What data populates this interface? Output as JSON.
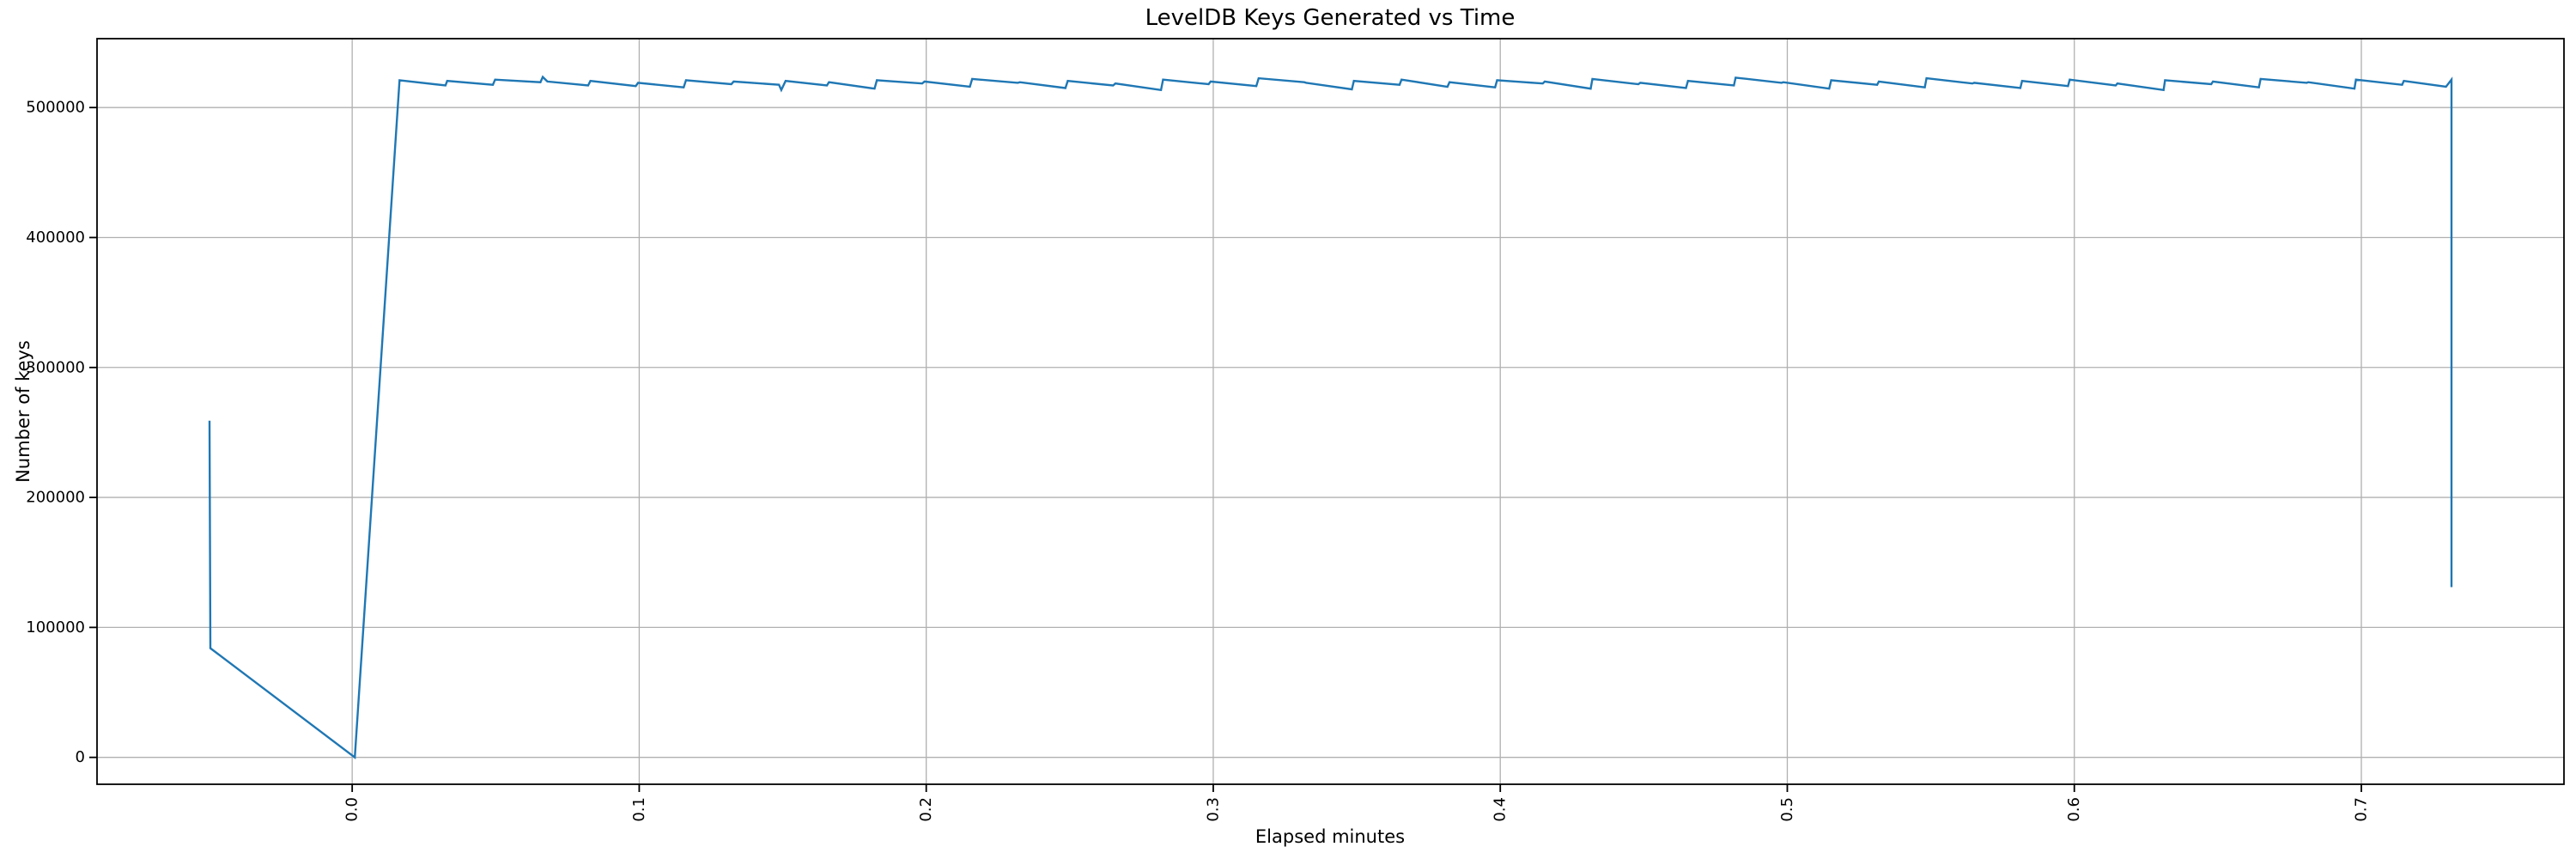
{
  "figure": {
    "background": "#ffffff",
    "spine_color": "#000000",
    "grid_color": "#b0b0b0",
    "text_color": "#000000"
  },
  "chart_data": {
    "type": "line",
    "title": "LevelDB Keys Generated vs Time",
    "xlabel": "Elapsed minutes",
    "ylabel": "Number of keys",
    "line_color": "#1f77b4",
    "grid": true,
    "legend": "none",
    "xlim": [
      -0.0889,
      0.7706
    ],
    "ylim": [
      -20700,
      553000
    ],
    "x_ticks": [
      0.0,
      0.1,
      0.2,
      0.3,
      0.4,
      0.5,
      0.6,
      0.7
    ],
    "x_tick_labels": [
      "0.0",
      "0.1",
      "0.2",
      "0.3",
      "0.4",
      "0.5",
      "0.6",
      "0.7"
    ],
    "x_tick_rotation": 90,
    "y_ticks": [
      0,
      100000,
      200000,
      300000,
      400000,
      500000
    ],
    "y_tick_labels": [
      "0",
      "100000",
      "200000",
      "300000",
      "400000",
      "500000"
    ],
    "series": [
      {
        "name": "keys",
        "points": [
          [
            -0.0497,
            259000
          ],
          [
            -0.0494,
            84000
          ],
          [
            0.0009,
            0
          ],
          [
            0.0165,
            521000
          ],
          [
            0.0325,
            517000
          ],
          [
            0.0331,
            520500
          ],
          [
            0.049,
            517500
          ],
          [
            0.0498,
            521500
          ],
          [
            0.0656,
            519500
          ],
          [
            0.0664,
            523500
          ],
          [
            0.068,
            520000
          ],
          [
            0.0822,
            517000
          ],
          [
            0.083,
            520500
          ],
          [
            0.0988,
            516500
          ],
          [
            0.0996,
            519000
          ],
          [
            0.1155,
            515500
          ],
          [
            0.1163,
            521000
          ],
          [
            0.1321,
            518000
          ],
          [
            0.1329,
            520000
          ],
          [
            0.1487,
            517500
          ],
          [
            0.1495,
            513500
          ],
          [
            0.151,
            520500
          ],
          [
            0.1654,
            517000
          ],
          [
            0.1661,
            519500
          ],
          [
            0.182,
            514500
          ],
          [
            0.1828,
            521000
          ],
          [
            0.1986,
            518500
          ],
          [
            0.1994,
            520000
          ],
          [
            0.2152,
            516000
          ],
          [
            0.216,
            522000
          ],
          [
            0.2319,
            519000
          ],
          [
            0.2326,
            519500
          ],
          [
            0.2485,
            515000
          ],
          [
            0.2493,
            520500
          ],
          [
            0.2651,
            517000
          ],
          [
            0.2659,
            518500
          ],
          [
            0.2818,
            513500
          ],
          [
            0.2825,
            521500
          ],
          [
            0.2984,
            518000
          ],
          [
            0.2991,
            520000
          ],
          [
            0.315,
            516500
          ],
          [
            0.3158,
            522500
          ],
          [
            0.3317,
            519500
          ],
          [
            0.3324,
            519000
          ],
          [
            0.3483,
            514000
          ],
          [
            0.349,
            520500
          ],
          [
            0.3649,
            517500
          ],
          [
            0.3656,
            521500
          ],
          [
            0.3816,
            516000
          ],
          [
            0.3823,
            519500
          ],
          [
            0.3982,
            515500
          ],
          [
            0.3989,
            521000
          ],
          [
            0.4148,
            518500
          ],
          [
            0.4155,
            520000
          ],
          [
            0.4315,
            514500
          ],
          [
            0.4321,
            522000
          ],
          [
            0.4481,
            518000
          ],
          [
            0.4488,
            519000
          ],
          [
            0.4647,
            515000
          ],
          [
            0.4654,
            520500
          ],
          [
            0.4814,
            517000
          ],
          [
            0.482,
            523000
          ],
          [
            0.498,
            519000
          ],
          [
            0.4986,
            519500
          ],
          [
            0.5146,
            514500
          ],
          [
            0.5153,
            521000
          ],
          [
            0.5313,
            517500
          ],
          [
            0.5319,
            520000
          ],
          [
            0.5479,
            515500
          ],
          [
            0.5485,
            522500
          ],
          [
            0.5645,
            518500
          ],
          [
            0.5651,
            519000
          ],
          [
            0.5812,
            515000
          ],
          [
            0.5818,
            520500
          ],
          [
            0.5978,
            516500
          ],
          [
            0.5984,
            521500
          ],
          [
            0.6144,
            517000
          ],
          [
            0.615,
            518500
          ],
          [
            0.6311,
            513500
          ],
          [
            0.6316,
            521000
          ],
          [
            0.6477,
            518000
          ],
          [
            0.6483,
            520000
          ],
          [
            0.6643,
            515500
          ],
          [
            0.6649,
            522000
          ],
          [
            0.681,
            519000
          ],
          [
            0.6815,
            519500
          ],
          [
            0.6976,
            514500
          ],
          [
            0.6981,
            521500
          ],
          [
            0.7142,
            517500
          ],
          [
            0.7148,
            520500
          ],
          [
            0.7295,
            516000
          ],
          [
            0.7314,
            521500
          ],
          [
            0.7314,
            131000
          ]
        ]
      }
    ]
  }
}
